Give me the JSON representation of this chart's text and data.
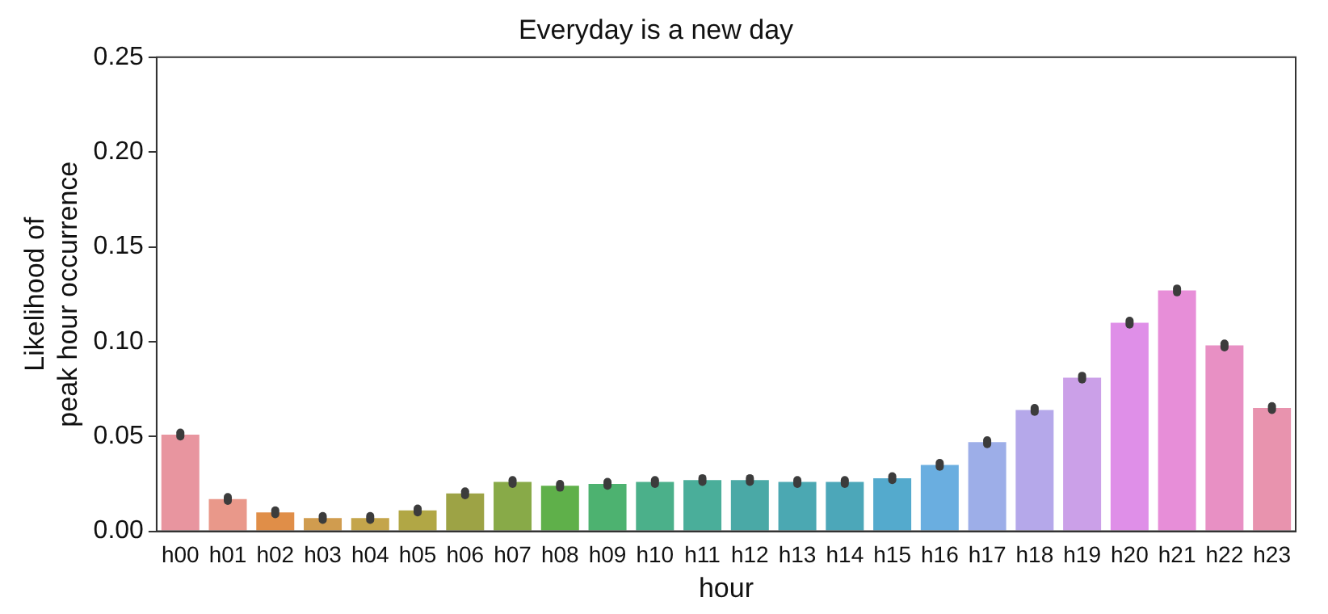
{
  "chart_data": {
    "type": "bar",
    "title": "Everyday is a new day",
    "xlabel": "hour",
    "ylabel": "Likelihood of\npeak hour occurrence",
    "categories": [
      "h00",
      "h01",
      "h02",
      "h03",
      "h04",
      "h05",
      "h06",
      "h07",
      "h08",
      "h09",
      "h10",
      "h11",
      "h12",
      "h13",
      "h14",
      "h15",
      "h16",
      "h17",
      "h18",
      "h19",
      "h20",
      "h21",
      "h22",
      "h23"
    ],
    "values": [
      0.051,
      0.017,
      0.01,
      0.007,
      0.007,
      0.011,
      0.02,
      0.026,
      0.024,
      0.025,
      0.026,
      0.027,
      0.027,
      0.026,
      0.026,
      0.028,
      0.035,
      0.047,
      0.064,
      0.081,
      0.11,
      0.127,
      0.098,
      0.065
    ],
    "errors": [
      0.001,
      0.001,
      0.001,
      0.001,
      0.001,
      0.001,
      0.001,
      0.001,
      0.001,
      0.001,
      0.001,
      0.001,
      0.001,
      0.001,
      0.001,
      0.001,
      0.001,
      0.001,
      0.001,
      0.001,
      0.001,
      0.001,
      0.001,
      0.001
    ],
    "colors": [
      "#e8959f",
      "#e9988a",
      "#e08e48",
      "#d09c4f",
      "#c4a54b",
      "#b1a745",
      "#9da345",
      "#88aa48",
      "#5fb04a",
      "#4db270",
      "#4bb08a",
      "#4aae9a",
      "#4aa9a6",
      "#4ba8b2",
      "#4ca7b9",
      "#54aacd",
      "#6aaee0",
      "#9daee8",
      "#b5a8ea",
      "#cba0e8",
      "#df8fe8",
      "#e78ed8",
      "#e890c4",
      "#e893ae"
    ],
    "ylim": [
      0,
      0.25
    ],
    "yticks": [
      {
        "value": 0,
        "label": "0.00"
      },
      {
        "value": 0.05,
        "label": "0.05"
      },
      {
        "value": 0.1,
        "label": "0.10"
      },
      {
        "value": 0.15,
        "label": "0.15"
      },
      {
        "value": 0.2,
        "label": "0.20"
      },
      {
        "value": 0.25,
        "label": "0.25"
      }
    ],
    "grid": false,
    "legend": false
  }
}
